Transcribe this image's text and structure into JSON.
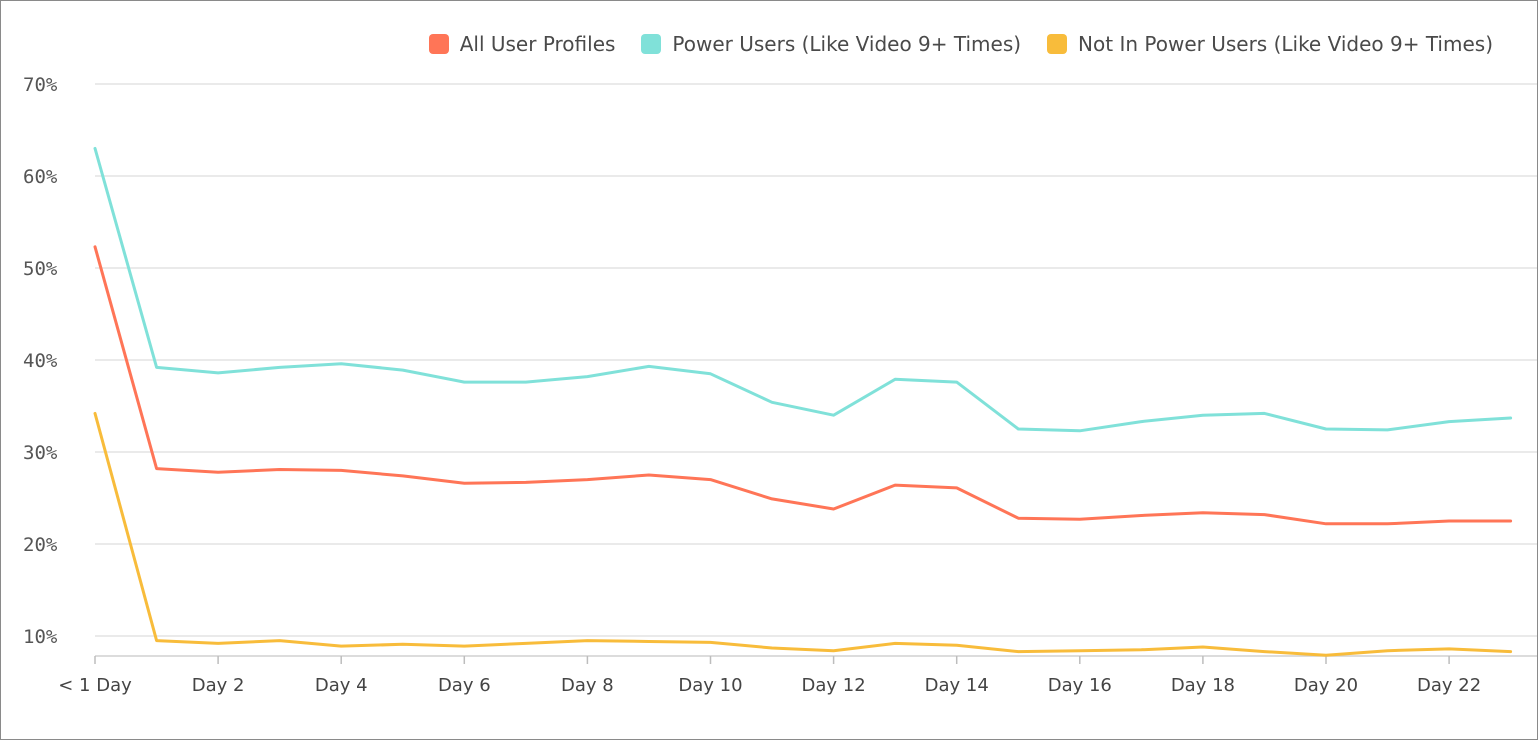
{
  "chart_data": {
    "type": "line",
    "title": "",
    "xlabel": "",
    "ylabel": "",
    "x": [
      "< 1 Day",
      "Day 1",
      "Day 2",
      "Day 3",
      "Day 4",
      "Day 5",
      "Day 6",
      "Day 7",
      "Day 8",
      "Day 9",
      "Day 10",
      "Day 11",
      "Day 12",
      "Day 13",
      "Day 14",
      "Day 15",
      "Day 16",
      "Day 17",
      "Day 18",
      "Day 19",
      "Day 20",
      "Day 21",
      "Day 22",
      "Day 23"
    ],
    "x_tick_labels": [
      "< 1 Day",
      "Day 2",
      "Day 4",
      "Day 6",
      "Day 8",
      "Day 10",
      "Day 12",
      "Day 14",
      "Day 16",
      "Day 18",
      "Day 20",
      "Day 22"
    ],
    "x_tick_indices": [
      0,
      2,
      4,
      6,
      8,
      10,
      12,
      14,
      16,
      18,
      20,
      22
    ],
    "y_ticks": [
      10,
      20,
      30,
      40,
      50,
      60,
      70
    ],
    "y_tick_labels": [
      "10%",
      "20%",
      "30%",
      "40%",
      "50%",
      "60%",
      "70%"
    ],
    "ylim": [
      8,
      70
    ],
    "grid": true,
    "legend_position": "top-right",
    "series": [
      {
        "name": "All User Profiles",
        "color": "#ff7557",
        "values": [
          52.3,
          28.2,
          27.8,
          28.1,
          28.0,
          27.4,
          26.6,
          26.7,
          27.0,
          27.5,
          27.0,
          24.9,
          23.8,
          26.4,
          26.1,
          22.8,
          22.7,
          23.1,
          23.4,
          23.2,
          22.2,
          22.2,
          22.5,
          22.5
        ]
      },
      {
        "name": "Power Users (Like Video 9+ Times)",
        "color": "#80e1d9",
        "values": [
          63.0,
          39.2,
          38.6,
          39.2,
          39.6,
          38.9,
          37.6,
          37.6,
          38.2,
          39.3,
          38.5,
          35.4,
          34.0,
          37.9,
          37.6,
          32.5,
          32.3,
          33.3,
          34.0,
          34.2,
          32.5,
          32.4,
          33.3,
          33.7
        ]
      },
      {
        "name": "Not In Power Users (Like Video 9+ Times)",
        "color": "#f8bc3b",
        "values": [
          34.2,
          9.5,
          9.2,
          9.5,
          8.9,
          9.1,
          8.9,
          9.2,
          9.5,
          9.4,
          9.3,
          8.7,
          8.4,
          9.2,
          9.0,
          8.3,
          8.4,
          8.5,
          8.8,
          8.3,
          7.9,
          8.4,
          8.6,
          8.3
        ]
      }
    ]
  }
}
